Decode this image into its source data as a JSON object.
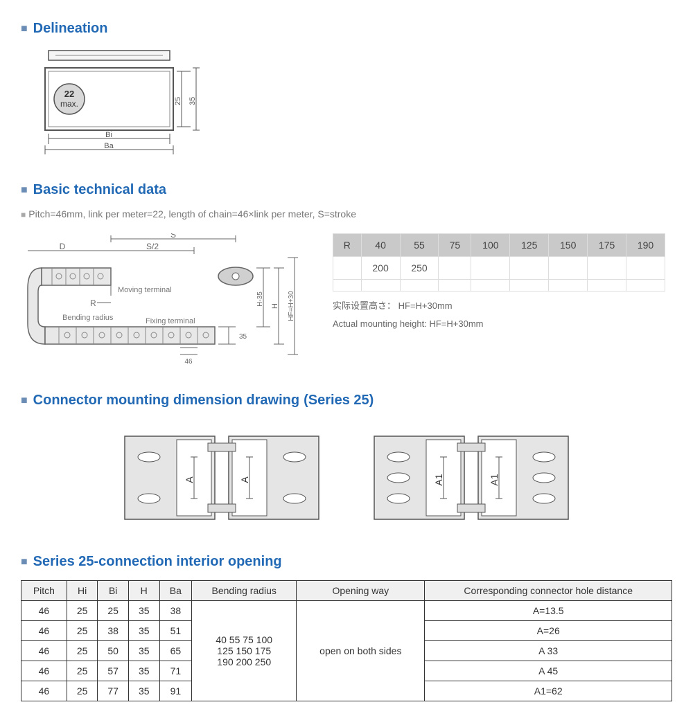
{
  "sections": {
    "delineation": "Delineation",
    "basic_tech": "Basic technical data",
    "connector": "Connector mounting dimension drawing",
    "connector_series": "(Series 25)",
    "series25": "Series 25-connection interior opening"
  },
  "delineation_drawing": {
    "max_label": "22\nmax.",
    "dim_inner": "25",
    "dim_outer": "35",
    "dim_bi": "Bi",
    "dim_ba": "Ba",
    "colors": {
      "line": "#555555",
      "fill": "#f0f0f0",
      "circle_fill": "#d8d8d8"
    }
  },
  "pitch_note": "Pitch=46mm, link per meter=22, length of chain=46×link per meter, S=stroke",
  "chain_drawing": {
    "labels": {
      "s": "S",
      "s2": "S/2",
      "d": "D",
      "r": "R",
      "moving": "Moving terminal",
      "fixing": "Fixing terminal",
      "bending": "Bending radius",
      "h_inner": "H-35",
      "h": "H",
      "hf": "HF=H+30",
      "pitch": "46",
      "height": "35"
    },
    "colors": {
      "line": "#666666",
      "fill": "#d0d0d0",
      "text": "#777777"
    }
  },
  "r_table": {
    "header": [
      "R",
      "40",
      "55",
      "75",
      "100",
      "125",
      "150",
      "175",
      "190"
    ],
    "row2": [
      "",
      "200",
      "250",
      "",
      "",
      "",
      "",
      "",
      ""
    ],
    "note_jp": "实际设置高さ：  HF=H+30mm",
    "note_en": "Actual mounting height: HF=H+30mm"
  },
  "connector_drawing": {
    "label_a": "A",
    "label_a1": "A1",
    "colors": {
      "line": "#555555",
      "fill": "#e5e5e5",
      "inner": "#ffffff"
    }
  },
  "main_table": {
    "headers": [
      "Pitch",
      "Hi",
      "Bi",
      "H",
      "Ba",
      "Bending radius",
      "Opening way",
      "Corresponding connector hole distance"
    ],
    "rows": [
      {
        "pitch": "46",
        "hi": "25",
        "bi": "25",
        "h": "35",
        "ba": "38",
        "hole": "A=13.5"
      },
      {
        "pitch": "46",
        "hi": "25",
        "bi": "38",
        "h": "35",
        "ba": "51",
        "hole": "A=26"
      },
      {
        "pitch": "46",
        "hi": "25",
        "bi": "50",
        "h": "35",
        "ba": "65",
        "hole": "A 33"
      },
      {
        "pitch": "46",
        "hi": "25",
        "bi": "57",
        "h": "35",
        "ba": "71",
        "hole": "A 45"
      },
      {
        "pitch": "46",
        "hi": "25",
        "bi": "77",
        "h": "35",
        "ba": "91",
        "hole": "A1=62"
      }
    ],
    "bending_radius": "40 55 75 100\n125 150 175\n190 200 250",
    "opening_way": "open on both sides"
  }
}
